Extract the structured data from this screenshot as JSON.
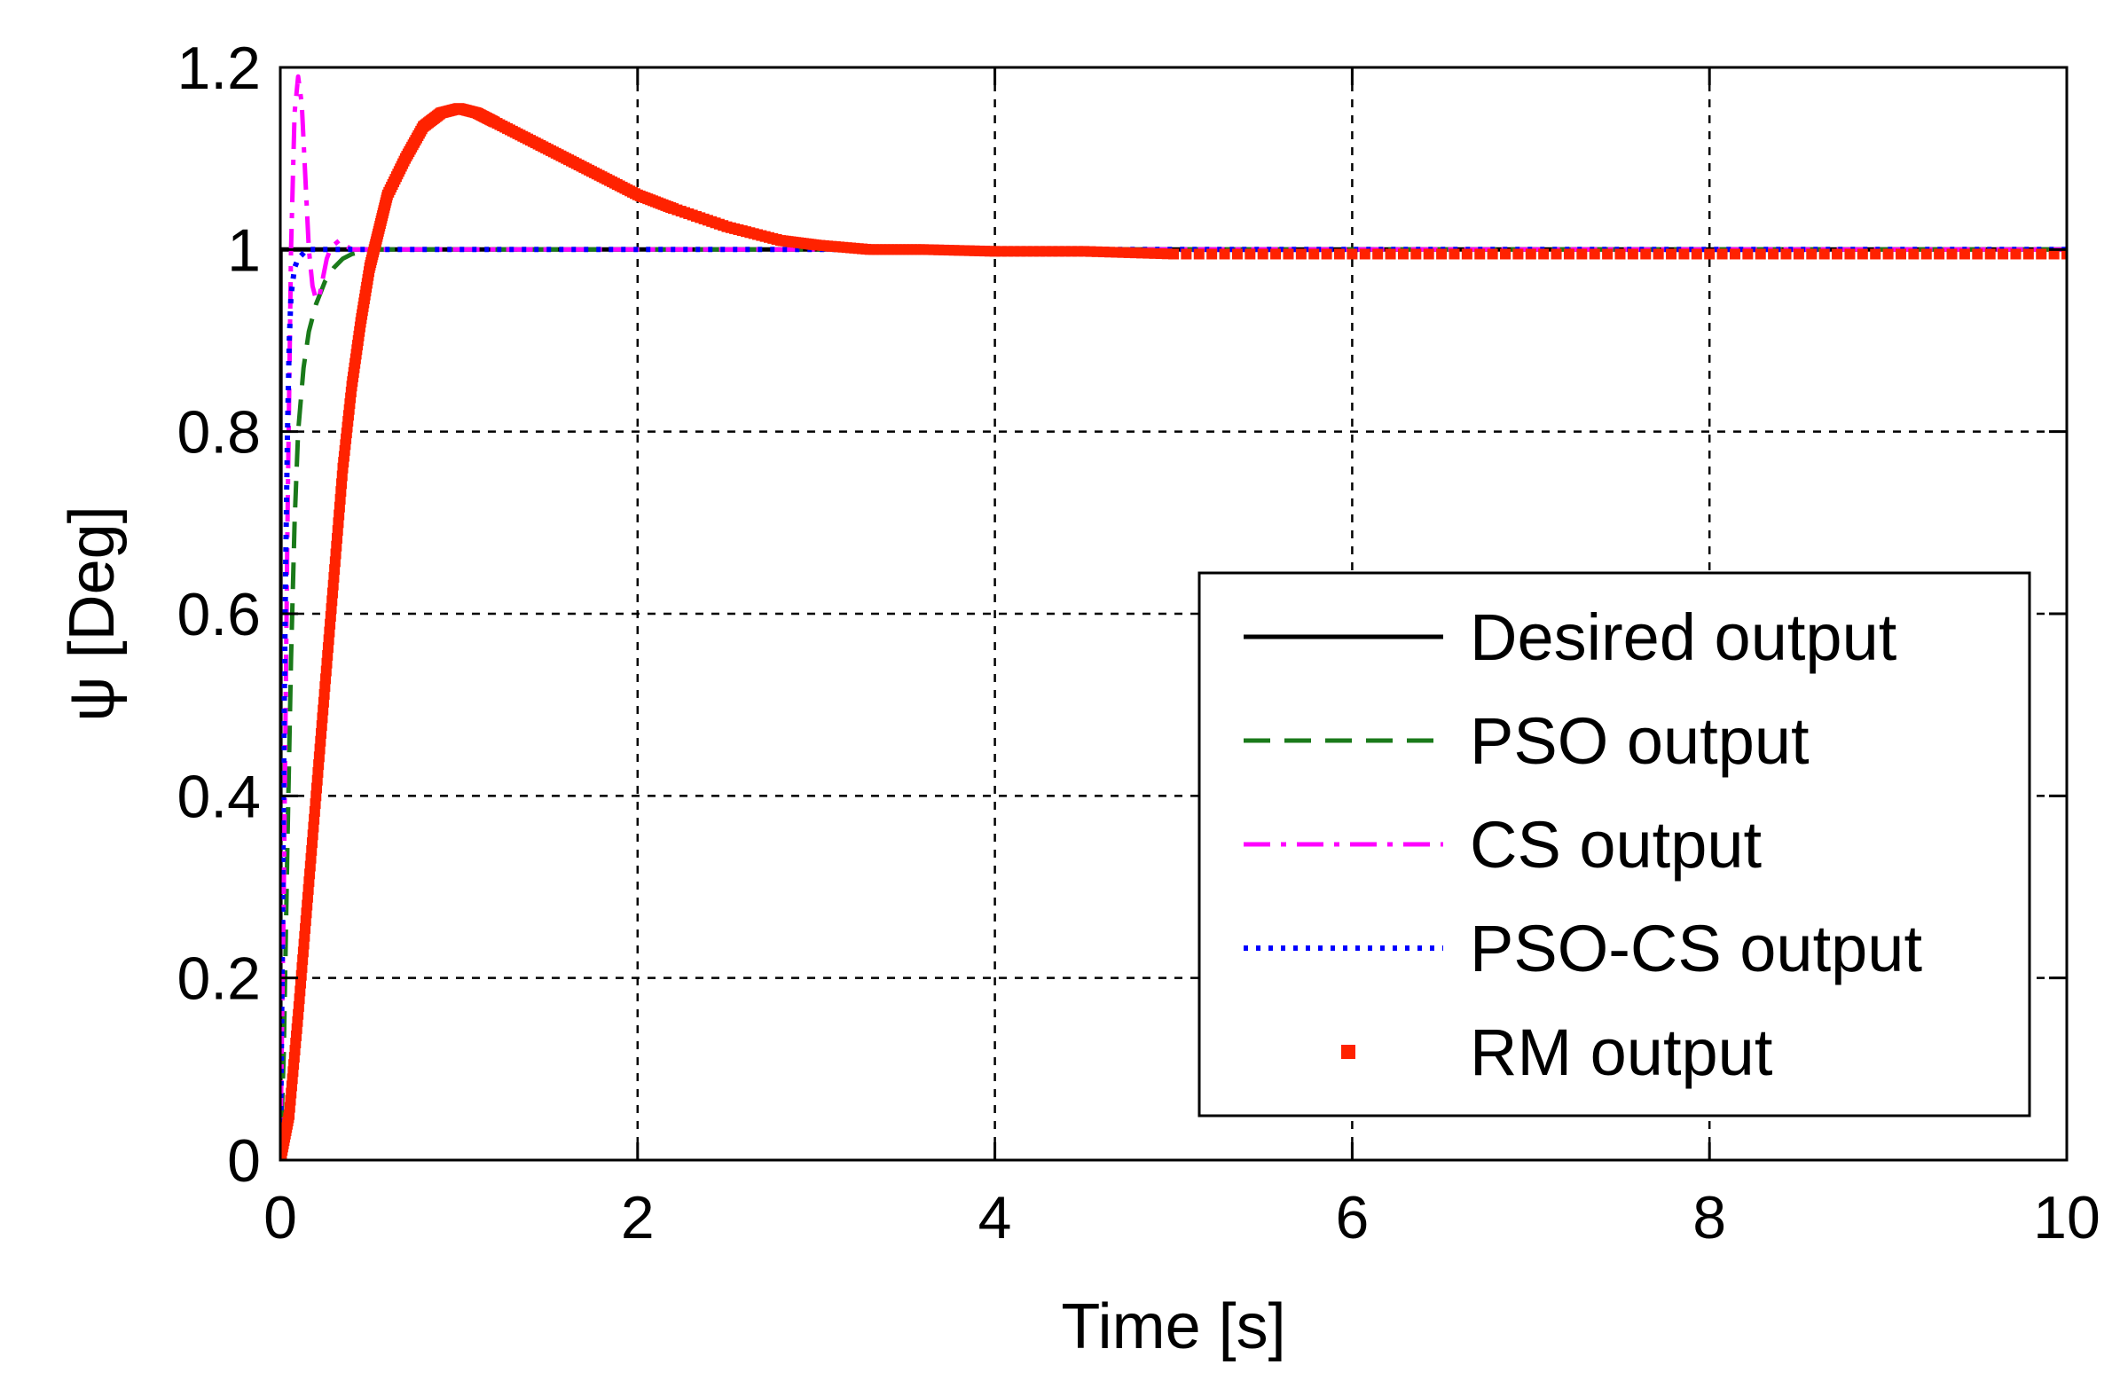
{
  "chart_data": {
    "type": "line",
    "title": "",
    "xlabel": "Time [s]",
    "ylabel": "ψ [Deg]",
    "xlim": [
      0,
      10
    ],
    "ylim": [
      0,
      1.2
    ],
    "xticks": [
      0,
      2,
      4,
      6,
      8,
      10
    ],
    "yticks": [
      0,
      0.2,
      0.4,
      0.6,
      0.8,
      1,
      1.2
    ],
    "xtick_labels": [
      "0",
      "2",
      "4",
      "6",
      "8",
      "10"
    ],
    "ytick_labels": [
      "0",
      "0.2",
      "0.4",
      "0.6",
      "0.8",
      "1",
      "1.2"
    ],
    "grid": true,
    "legend_position": "lower-right",
    "series": [
      {
        "name": "Desired output",
        "style": "solid",
        "color": "#000000",
        "x": [
          0,
          0.001,
          10
        ],
        "y": [
          0,
          1,
          1
        ]
      },
      {
        "name": "PSO output",
        "style": "dashed",
        "color": "#1a7a1a",
        "x": [
          0,
          0.02,
          0.04,
          0.06,
          0.08,
          0.1,
          0.13,
          0.16,
          0.2,
          0.25,
          0.3,
          0.35,
          0.4,
          0.5,
          1,
          2,
          4,
          6,
          8,
          10
        ],
        "y": [
          0,
          0.12,
          0.35,
          0.55,
          0.7,
          0.8,
          0.87,
          0.91,
          0.94,
          0.965,
          0.98,
          0.99,
          0.995,
          1.0,
          1.0,
          1.0,
          1.0,
          1.0,
          1.0,
          1.0
        ]
      },
      {
        "name": "CS output",
        "style": "dashdot",
        "color": "#ff00ff",
        "x": [
          0,
          0.02,
          0.04,
          0.06,
          0.08,
          0.1,
          0.12,
          0.14,
          0.16,
          0.18,
          0.2,
          0.22,
          0.24,
          0.26,
          0.28,
          0.3,
          0.33,
          0.36,
          0.4,
          0.45,
          0.5,
          1,
          10
        ],
        "y": [
          0,
          0.3,
          0.7,
          1.0,
          1.15,
          1.19,
          1.16,
          1.08,
          1.0,
          0.96,
          0.945,
          0.95,
          0.97,
          0.99,
          1.0,
          1.005,
          1.01,
          1.005,
          1.0,
          1.0,
          1.0,
          1.0,
          1.0
        ]
      },
      {
        "name": "PSO-CS output",
        "style": "dotted",
        "color": "#0000ff",
        "x": [
          0,
          0.01,
          0.02,
          0.03,
          0.04,
          0.05,
          0.06,
          0.08,
          0.1,
          0.15,
          0.2,
          10
        ],
        "y": [
          0,
          0.2,
          0.45,
          0.65,
          0.8,
          0.9,
          0.95,
          0.98,
          0.99,
          1.0,
          1.0,
          1.0
        ]
      },
      {
        "name": "RM output",
        "style": "markers",
        "color": "#ff2200",
        "x": [
          0,
          0.05,
          0.1,
          0.15,
          0.2,
          0.25,
          0.3,
          0.35,
          0.4,
          0.45,
          0.5,
          0.55,
          0.6,
          0.7,
          0.8,
          0.9,
          1.0,
          1.1,
          1.2,
          1.4,
          1.6,
          1.8,
          2.0,
          2.2,
          2.5,
          2.8,
          3.0,
          3.3,
          3.6,
          4.0,
          4.5,
          5,
          6,
          7,
          8,
          9,
          10
        ],
        "y": [
          0,
          0.05,
          0.16,
          0.28,
          0.4,
          0.52,
          0.64,
          0.76,
          0.85,
          0.92,
          0.98,
          1.02,
          1.06,
          1.1,
          1.135,
          1.15,
          1.155,
          1.15,
          1.14,
          1.12,
          1.1,
          1.08,
          1.06,
          1.045,
          1.025,
          1.01,
          1.005,
          1.0,
          1.0,
          0.998,
          0.998,
          0.995,
          0.995,
          0.995,
          0.995,
          0.995,
          0.995
        ]
      }
    ]
  }
}
